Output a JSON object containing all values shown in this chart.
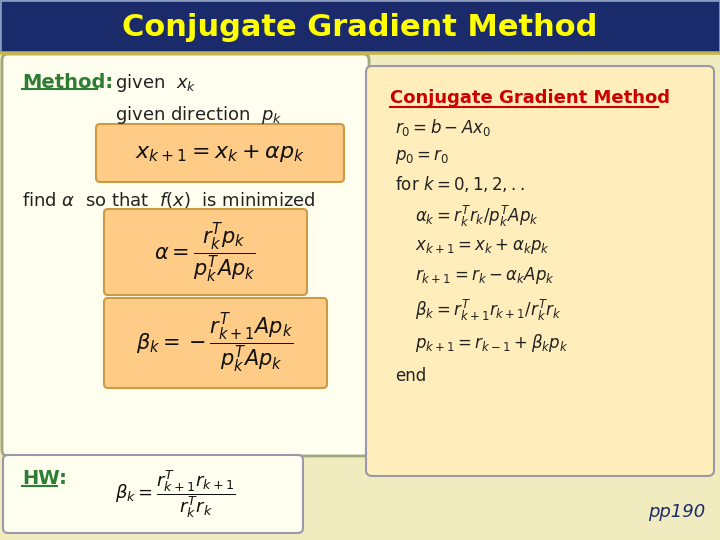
{
  "title": "Conjugate Gradient Method",
  "title_color": "#FFFF00",
  "title_bg": "#1B2A6B",
  "bg_color": "#F0ECC0",
  "left_box_bg": "#FFFFF0",
  "method_label": "Method:",
  "method_color": "#2E7D32",
  "hw_label": "HW:",
  "hw_color": "#2E7D32",
  "cgm_label": "Conjugate Gradient Method",
  "cgm_color": "#CC0000",
  "pp190": "pp190",
  "pp190_color": "#1B2A6B"
}
